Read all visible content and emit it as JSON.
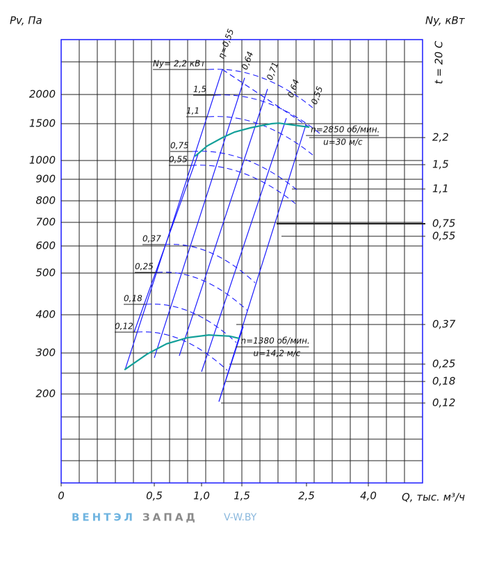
{
  "chart_data": {
    "type": "fan-performance",
    "y_label": "Pv, Па",
    "y2_label": "Ny, кВт",
    "x_label": "Q, тыс. м³/ч",
    "temperature": "t = 20 C",
    "xticks": [
      0,
      {
        "value": 0.5,
        "label": "0,5"
      },
      {
        "value": 1.0,
        "label": "1,0"
      },
      {
        "value": 1.5,
        "label": "1,5"
      },
      {
        "value": 2.5,
        "label": "2,5"
      },
      {
        "value": 4.0,
        "label": "4,0"
      }
    ],
    "yticks": [
      200,
      300,
      400,
      500,
      600,
      700,
      800,
      900,
      1000,
      1500,
      2000
    ],
    "y2ticks": [
      {
        "value": 2.2,
        "label": "2,2"
      },
      {
        "value": 1.5,
        "label": "1,5"
      },
      {
        "value": 1.1,
        "label": "1,1"
      },
      {
        "value": 0.75,
        "label": "0,75"
      },
      {
        "value": 0.55,
        "label": "0,55"
      },
      {
        "value": 0.37,
        "label": "0,37"
      },
      {
        "value": 0.25,
        "label": "0,25"
      },
      {
        "value": 0.18,
        "label": "0,18"
      },
      {
        "value": 0.12,
        "label": "0,12"
      }
    ],
    "series": [
      {
        "name": "n=2850 об/мин.",
        "speed": "u=30 м/с",
        "color": "#14a09a",
        "x": [
          0.93,
          1.07,
          1.26,
          1.41,
          1.63,
          1.84,
          1.96,
          2.07,
          2.57
        ],
        "values": [
          1057,
          1198,
          1311,
          1387,
          1443,
          1481,
          1500,
          1509,
          1453
        ]
      },
      {
        "name": "n=1380 об/мин.",
        "speed": "u=14,2 м/с",
        "color": "#14a09a",
        "x": [
          0.34,
          0.46,
          0.63,
          0.85,
          1.09,
          1.35,
          1.47
        ],
        "values": [
          259,
          297,
          324,
          340,
          347,
          344,
          338
        ]
      }
    ],
    "power_labels": [
      "Ny= 2,2 кВт",
      "1,5",
      "1,1",
      "0,75",
      "0,55",
      "0,37",
      "0,25",
      "0,18",
      "0,12"
    ],
    "efficiency_labels": [
      "η=0,55",
      "0,64",
      "0,71",
      "0,64",
      "0,55"
    ],
    "watermark": {
      "brand_a": "ВЕНТЭЛ",
      "brand_b": "ЗАПАД",
      "site": "V-W.BY"
    }
  }
}
